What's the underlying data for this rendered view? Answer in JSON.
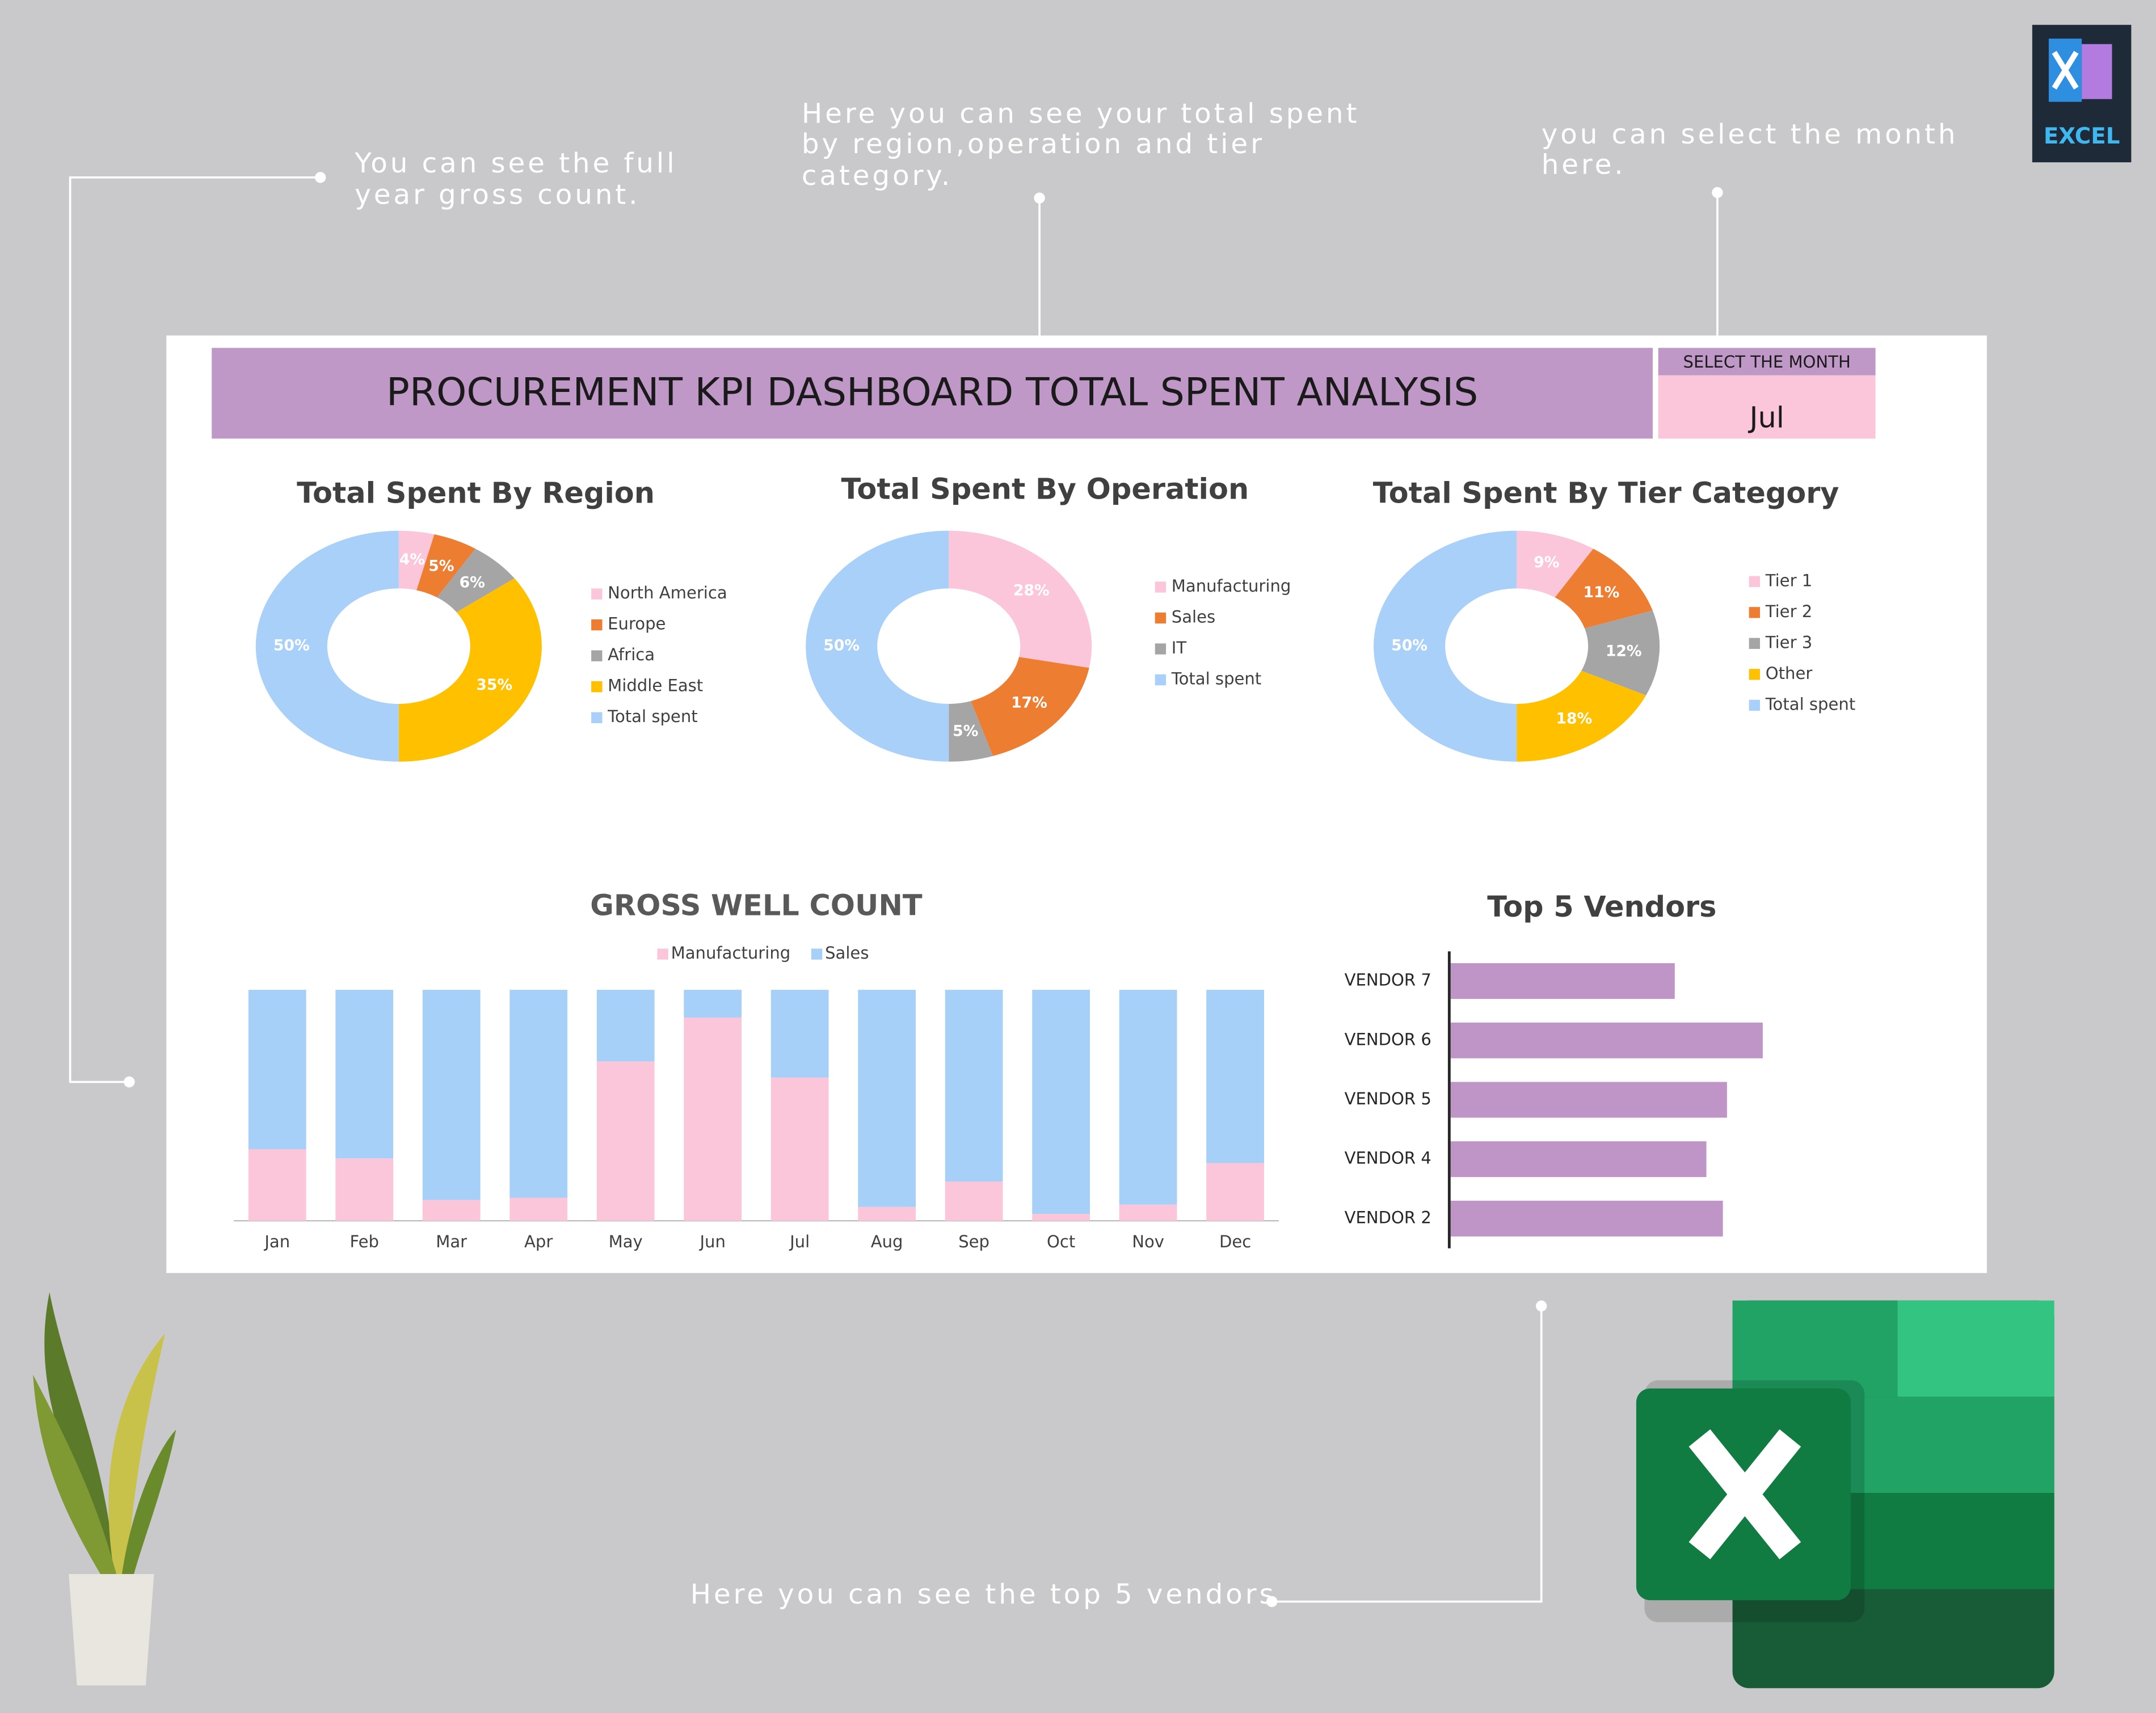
{
  "annotations": [
    [
      "You can see the full",
      "year gross count."
    ],
    [
      "Here you can see your total spent",
      "by region,operation and tier",
      "category."
    ],
    [
      "you can select the month",
      "here."
    ],
    [
      "Here you can see the top 5 vendors"
    ]
  ],
  "header": {
    "title": "PROCUREMENT KPI DASHBOARD TOTAL SPENT ANALYSIS",
    "select_label": "SELECT THE MONTH",
    "month": "Jul"
  },
  "logo_text": "EXCEL",
  "chart_data": [
    {
      "type": "pie",
      "title": "Total Spent By Region",
      "categories": [
        "North America",
        "Europe",
        "Africa",
        "Middle East",
        "Total spent"
      ],
      "values": [
        4,
        5,
        6,
        35,
        50
      ],
      "value_labels": [
        "4%",
        "5%",
        "6%",
        "35%",
        "50%"
      ],
      "colors": [
        "#fcc6da",
        "#ed7d31",
        "#a5a5a5",
        "#ffc000",
        "#a8d0f8"
      ]
    },
    {
      "type": "pie",
      "title": "Total Spent By Operation",
      "categories": [
        "Manufacturing",
        "Sales",
        "IT",
        "Total spent"
      ],
      "values": [
        28,
        17,
        5,
        50
      ],
      "value_labels": [
        "28%",
        "17%",
        "5%",
        "50%"
      ],
      "colors": [
        "#fcc6da",
        "#ed7d31",
        "#a5a5a5",
        "#a8d0f8"
      ]
    },
    {
      "type": "pie",
      "title": "Total Spent By Tier Category",
      "categories": [
        "Tier 1",
        "Tier 2",
        "Tier 3",
        "Other",
        "Total spent"
      ],
      "values": [
        9,
        11,
        12,
        18,
        50
      ],
      "value_labels": [
        "9%",
        "11%",
        "12%",
        "18%",
        "50%"
      ],
      "colors": [
        "#fcc6da",
        "#ed7d31",
        "#a5a5a5",
        "#ffc000",
        "#a8d0f8"
      ]
    },
    {
      "type": "bar",
      "title": "GROSS WELL COUNT",
      "categories": [
        "Jan",
        "Feb",
        "Mar",
        "Apr",
        "May",
        "Jun",
        "Jul",
        "Aug",
        "Sep",
        "Oct",
        "Nov",
        "Dec"
      ],
      "series": [
        {
          "name": "Manufacturing",
          "color": "#fcc6da",
          "values": [
            31,
            27,
            9,
            10,
            69,
            88,
            62,
            6,
            17,
            3,
            7,
            25
          ]
        },
        {
          "name": "Sales",
          "color": "#a6d0f8",
          "values": [
            69,
            73,
            91,
            90,
            31,
            12,
            38,
            94,
            83,
            97,
            93,
            75
          ]
        }
      ],
      "ylim": [
        0,
        100
      ],
      "stacked": true
    },
    {
      "type": "hbar",
      "title": "Top 5 Vendors",
      "categories": [
        "VENDOR 7",
        "VENDOR 6",
        "VENDOR 5",
        "VENDOR 4",
        "VENDOR 2"
      ],
      "values": [
        163,
        227,
        201,
        186,
        198
      ],
      "color": "#bf94c6",
      "xlim": [
        0,
        275
      ]
    }
  ]
}
